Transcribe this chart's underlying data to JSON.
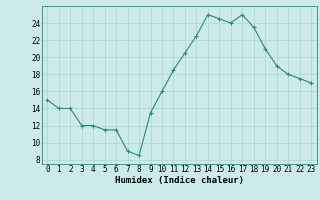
{
  "x": [
    0,
    1,
    2,
    3,
    4,
    5,
    6,
    7,
    8,
    9,
    10,
    11,
    12,
    13,
    14,
    15,
    16,
    17,
    18,
    19,
    20,
    21,
    22,
    23
  ],
  "y": [
    15,
    14,
    14,
    12,
    12,
    11.5,
    11.5,
    9,
    8.5,
    13.5,
    16,
    18.5,
    20.5,
    22.5,
    25,
    24.5,
    24,
    25,
    23.5,
    21,
    19,
    18,
    17.5,
    17
  ],
  "line_color": "#2e8b6b",
  "marker": "+",
  "marker_size": 3,
  "marker_linewidth": 0.8,
  "line_width": 0.8,
  "bg_color": "#cceaea",
  "grid_color": "#aad4d4",
  "xlabel": "Humidex (Indice chaleur)",
  "xlim": [
    -0.5,
    23.5
  ],
  "ylim": [
    7.5,
    26
  ],
  "yticks": [
    8,
    10,
    12,
    14,
    16,
    18,
    20,
    22,
    24
  ],
  "xtick_labels": [
    "0",
    "1",
    "2",
    "3",
    "4",
    "5",
    "6",
    "7",
    "8",
    "9",
    "10",
    "11",
    "12",
    "13",
    "14",
    "15",
    "16",
    "17",
    "18",
    "19",
    "20",
    "21",
    "22",
    "23"
  ],
  "label_fontsize": 6.5,
  "tick_fontsize": 5.5,
  "spine_color": "#2e8b6b"
}
